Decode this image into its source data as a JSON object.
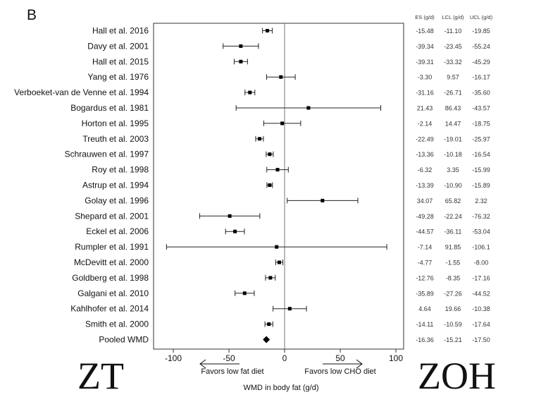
{
  "panel_label": "B",
  "watermarks": [
    "ZT",
    "ZOH"
  ],
  "chart_data": {
    "type": "forest",
    "table_headers": [
      "ES (g/d)",
      "LCL (g/d)",
      "UCL (g/d)"
    ],
    "studies": [
      {
        "label": "Hall et al. 2016",
        "es": "-15.48",
        "lcl": "-11.10",
        "ucl": "-19.85"
      },
      {
        "label": "Davy et al. 2001",
        "es": "-39.34",
        "lcl": "-23.45",
        "ucl": "-55.24"
      },
      {
        "label": "Hall et al. 2015",
        "es": "-39.31",
        "lcl": "-33.32",
        "ucl": "-45.29"
      },
      {
        "label": "Yang et al. 1976",
        "es": "-3.30",
        "lcl": "9.57",
        "ucl": "-16.17"
      },
      {
        "label": "Verboeket-van de Venne et al. 1994",
        "es": "-31.16",
        "lcl": "-26.71",
        "ucl": "-35.60"
      },
      {
        "label": "Bogardus et al. 1981",
        "es": "21.43",
        "lcl": "86.43",
        "ucl": "-43.57"
      },
      {
        "label": "Horton et al. 1995",
        "es": "-2.14",
        "lcl": "14.47",
        "ucl": "-18.75"
      },
      {
        "label": "Treuth et al. 2003",
        "es": "-22.49",
        "lcl": "-19.01",
        "ucl": "-25.97"
      },
      {
        "label": "Schrauwen et al. 1997",
        "es": "-13.36",
        "lcl": "-10.18",
        "ucl": "-16.54"
      },
      {
        "label": "Roy et al. 1998",
        "es": "-6.32",
        "lcl": "3.35",
        "ucl": "-15.99"
      },
      {
        "label": "Astrup et al. 1994",
        "es": "-13.39",
        "lcl": "-10.90",
        "ucl": "-15.89"
      },
      {
        "label": "Golay et al. 1996",
        "es": "34.07",
        "lcl": "65.82",
        "ucl": "2.32"
      },
      {
        "label": "Shepard et al. 2001",
        "es": "-49.28",
        "lcl": "-22.24",
        "ucl": "-76.32"
      },
      {
        "label": "Eckel et al. 2006",
        "es": "-44.57",
        "lcl": "-36.11",
        "ucl": "-53.04"
      },
      {
        "label": "Rumpler et al. 1991",
        "es": "-7.14",
        "lcl": "91.85",
        "ucl": "-106.1"
      },
      {
        "label": "McDevitt et al. 2000",
        "es": "-4.77",
        "lcl": "-1.55",
        "ucl": "-8.00"
      },
      {
        "label": "Goldberg et al. 1998",
        "es": "-12.76",
        "lcl": "-8.35",
        "ucl": "-17.16"
      },
      {
        "label": "Galgani et al. 2010",
        "es": "-35.89",
        "lcl": "-27.26",
        "ucl": "-44.52"
      },
      {
        "label": "Kahlhofer et al. 2014",
        "es": "4.64",
        "lcl": "19.66",
        "ucl": "-10.38"
      },
      {
        "label": "Smith et al. 2000",
        "es": "-14.11",
        "lcl": "-10.59",
        "ucl": "-17.64"
      }
    ],
    "pooled": {
      "label": "Pooled WMD",
      "es": "-16.36",
      "lcl": "-15.21",
      "ucl": "-17.50"
    },
    "x_ticks": [
      -100,
      -50,
      0,
      50,
      100
    ],
    "x_range": [
      -118,
      118
    ],
    "xlabel": "WMD in body fat (g/d)",
    "annotations": {
      "left_arrow": "Favors low fat diet",
      "right_arrow": "Favors low CHO diet"
    }
  }
}
